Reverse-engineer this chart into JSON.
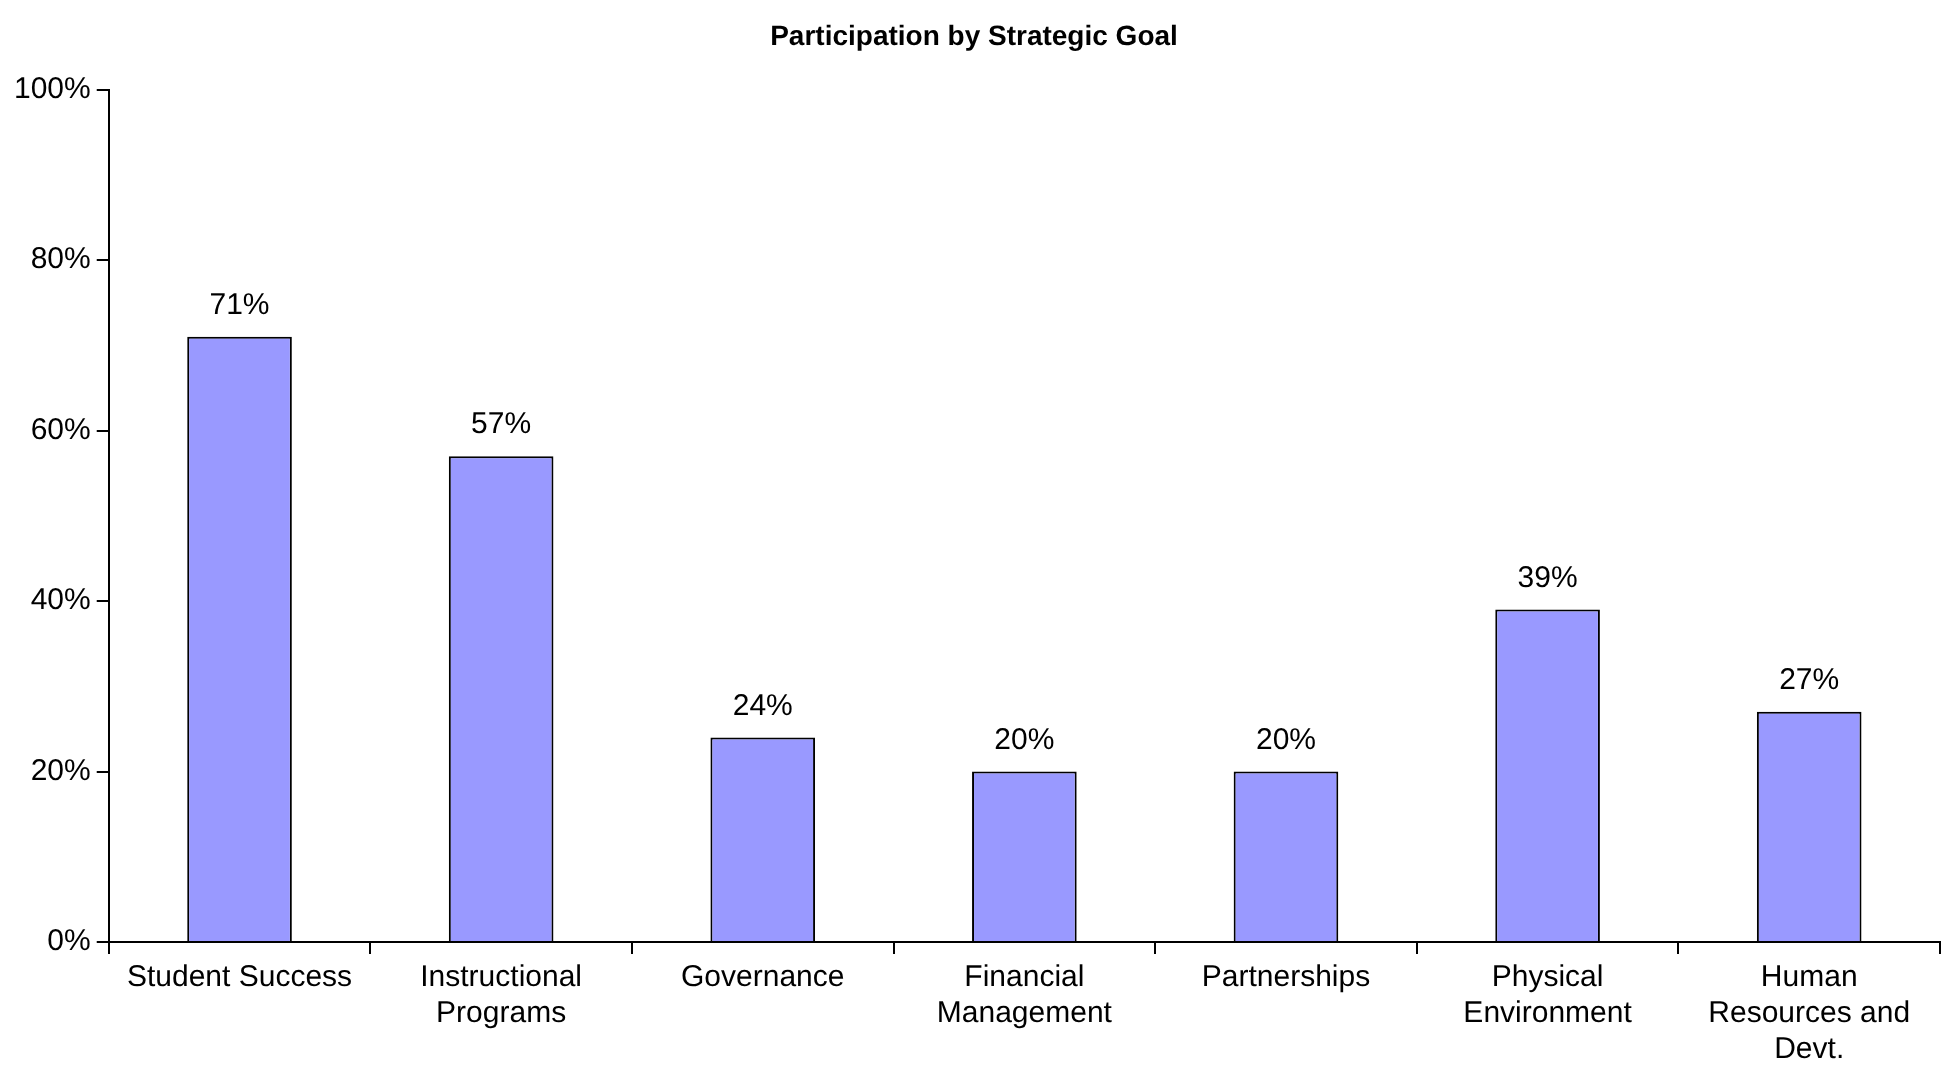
{
  "chart_data": {
    "type": "bar",
    "title": "Participation by Strategic Goal",
    "categories": [
      "Student Success",
      "Instructional Programs",
      "Governance",
      "Financial Management",
      "Partnerships",
      "Physical Environment",
      "Human Resources and Devt."
    ],
    "values": [
      71,
      57,
      24,
      20,
      20,
      39,
      27
    ],
    "value_labels": [
      "71%",
      "57%",
      "24%",
      "20%",
      "20%",
      "39%",
      "27%"
    ],
    "color": "#9999ff",
    "ylim": [
      0,
      100
    ],
    "yticks": [
      {
        "value": 0,
        "label": "0%"
      },
      {
        "value": 20,
        "label": "20%"
      },
      {
        "value": 40,
        "label": "40%"
      },
      {
        "value": 60,
        "label": "60%"
      },
      {
        "value": 80,
        "label": "80%"
      },
      {
        "value": 100,
        "label": "100%"
      }
    ],
    "grid": false,
    "legend": false
  }
}
